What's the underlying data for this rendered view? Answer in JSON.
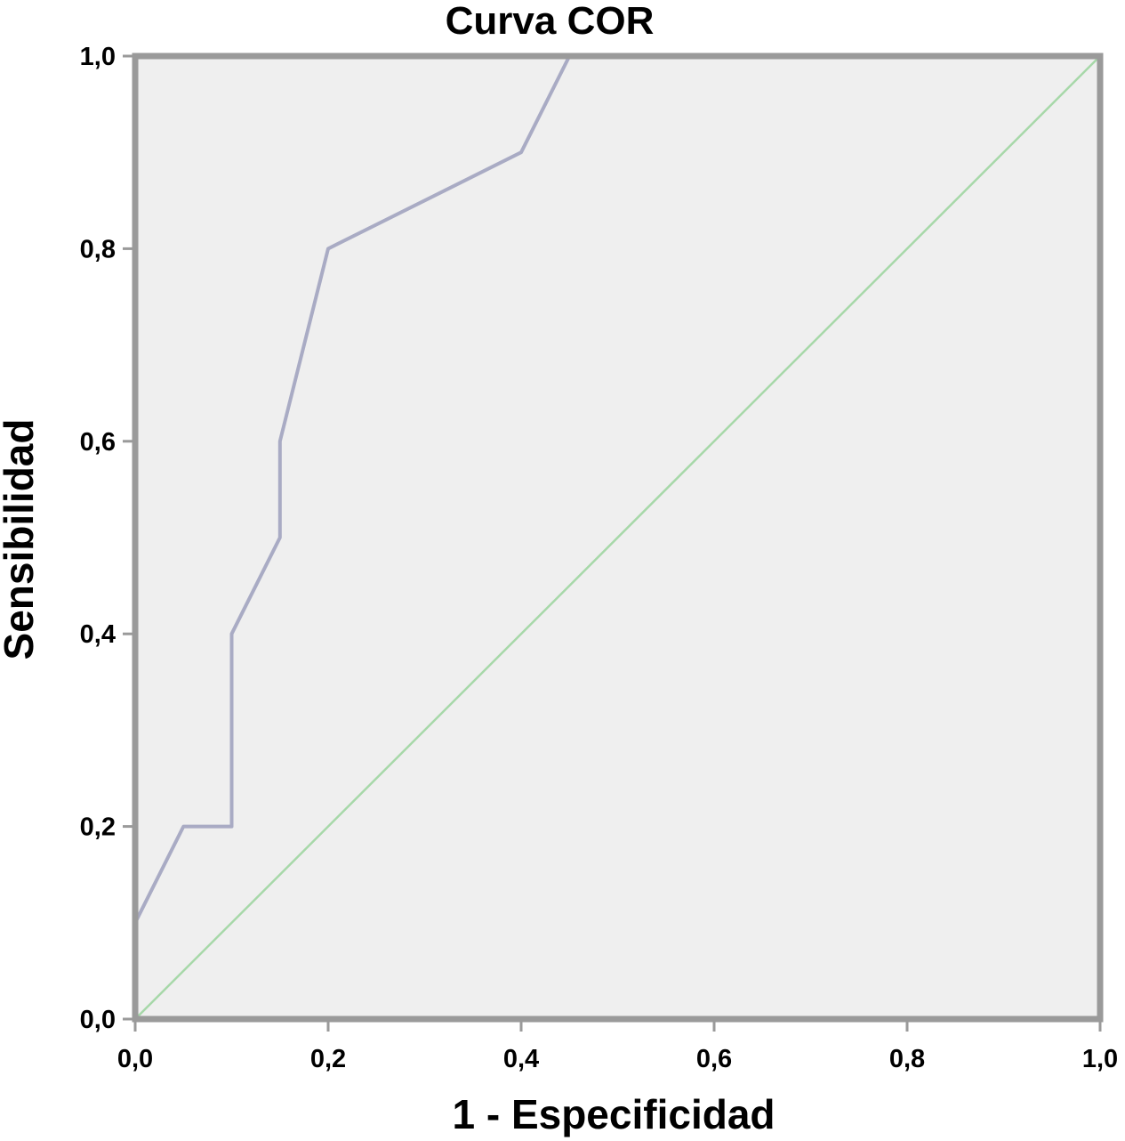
{
  "chart_data": {
    "type": "line",
    "title": "Curva COR",
    "xlabel": "1 - Especificidad",
    "ylabel": "Sensibilidad",
    "xlim": [
      0,
      1
    ],
    "ylim": [
      0,
      1
    ],
    "x_ticks": [
      "0,0",
      "0,2",
      "0,4",
      "0,6",
      "0,8",
      "1,0"
    ],
    "y_ticks": [
      "0,0",
      "0,2",
      "0,4",
      "0,6",
      "0,8",
      "1,0"
    ],
    "x_tick_values": [
      0,
      0.2,
      0.4,
      0.6,
      0.8,
      1.0
    ],
    "y_tick_values": [
      0,
      0.2,
      0.4,
      0.6,
      0.8,
      1.0
    ],
    "grid": false,
    "legend": "none",
    "series": [
      {
        "x": [
          0,
          0,
          0.05,
          0.1,
          0.1,
          0.15,
          0.15,
          0.2,
          0.4,
          0.45,
          1.0
        ],
        "y": [
          0,
          0.1,
          0.2,
          0.2,
          0.4,
          0.5,
          0.6,
          0.8,
          0.9,
          1.0,
          1.0
        ],
        "color": "#a9abc4"
      },
      {
        "x": [
          0,
          1
        ],
        "y": [
          0,
          1
        ],
        "color": "#a7d8a9"
      }
    ],
    "colors": {
      "plot_background": "#efefef",
      "frame": "#9a9a9a",
      "axis": "#9a9a9a"
    }
  }
}
